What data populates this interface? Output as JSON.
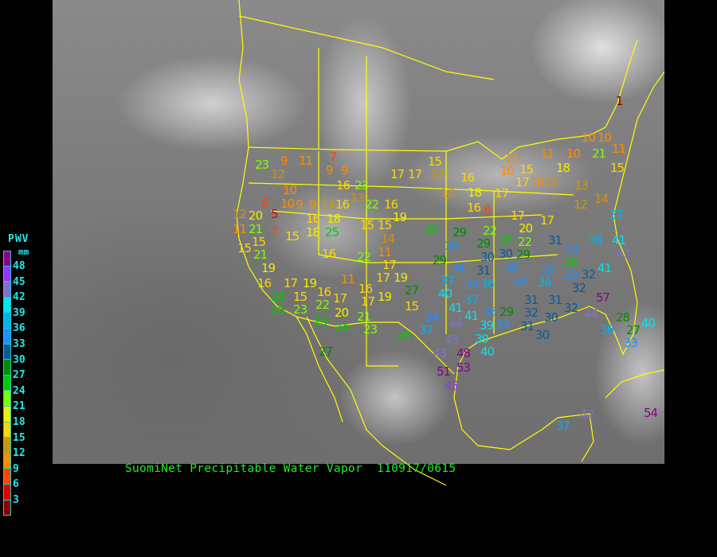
{
  "title": "SuomiNet Precipitable Water Vapor  110917/0615",
  "legend": {
    "title": "PWV",
    "unit": "mm",
    "ticks": [
      "48",
      "45",
      "42",
      "39",
      "36",
      "33",
      "30",
      "27",
      "24",
      "21",
      "18",
      "15",
      "12",
      "9",
      "6",
      "3"
    ],
    "colors": [
      "#8b008b",
      "#9b30ff",
      "#8470cc",
      "#00e5ee",
      "#00b2ee",
      "#1e90ff",
      "#0b5a96",
      "#008b00",
      "#00cd00",
      "#7fff00",
      "#eeee00",
      "#ffd700",
      "#cd950c",
      "#ff8c00",
      "#ff4500",
      "#dd0000",
      "#8b0000"
    ]
  },
  "map_colors": {
    "background": "#000000",
    "borders": "#ffff00"
  },
  "stations": [
    "23",
    "9",
    "11",
    "7",
    "9",
    "9",
    "12",
    "16",
    "23",
    "13",
    "10",
    "10",
    "9",
    "9",
    "14",
    "16",
    "22",
    "16",
    "17",
    "17",
    "8",
    "12",
    "20",
    "5",
    "19",
    "16",
    "18",
    "15",
    "15",
    "11",
    "21",
    "7",
    "18",
    "25",
    "14",
    "15",
    "15",
    "11",
    "15",
    "21",
    "16",
    "22",
    "17",
    "19",
    "16",
    "17",
    "19",
    "11",
    "17",
    "19",
    "24",
    "15",
    "16",
    "17",
    "16",
    "17",
    "19",
    "26",
    "22",
    "23",
    "24",
    "20",
    "21",
    "24",
    "23",
    "27",
    "27",
    "15",
    "15",
    "14",
    "16",
    "13",
    "18",
    "17",
    "16",
    "8",
    "10",
    "11",
    "15",
    "17",
    "10",
    "11",
    "10",
    "10",
    "10",
    "11",
    "21",
    "18",
    "12",
    "15",
    "13",
    "12",
    "14",
    "17",
    "17",
    "20",
    "26",
    "29",
    "22",
    "29",
    "26",
    "22",
    "29",
    "34",
    "31",
    "30",
    "30",
    "29",
    "31",
    "35",
    "34",
    "37",
    "36",
    "33",
    "33",
    "38",
    "41",
    "43",
    "37",
    "33",
    "26",
    "36",
    "33",
    "32",
    "41",
    "34",
    "32",
    "31",
    "40",
    "37",
    "41",
    "41",
    "35",
    "29",
    "32",
    "31",
    "32",
    "34",
    "44",
    "39",
    "34",
    "31",
    "30",
    "30",
    "57",
    "44",
    "28",
    "36",
    "27",
    "40",
    "37",
    "26",
    "43",
    "39",
    "40",
    "33",
    "43",
    "48",
    "51",
    "53",
    "45",
    "42",
    "37",
    "54",
    "1"
  ]
}
